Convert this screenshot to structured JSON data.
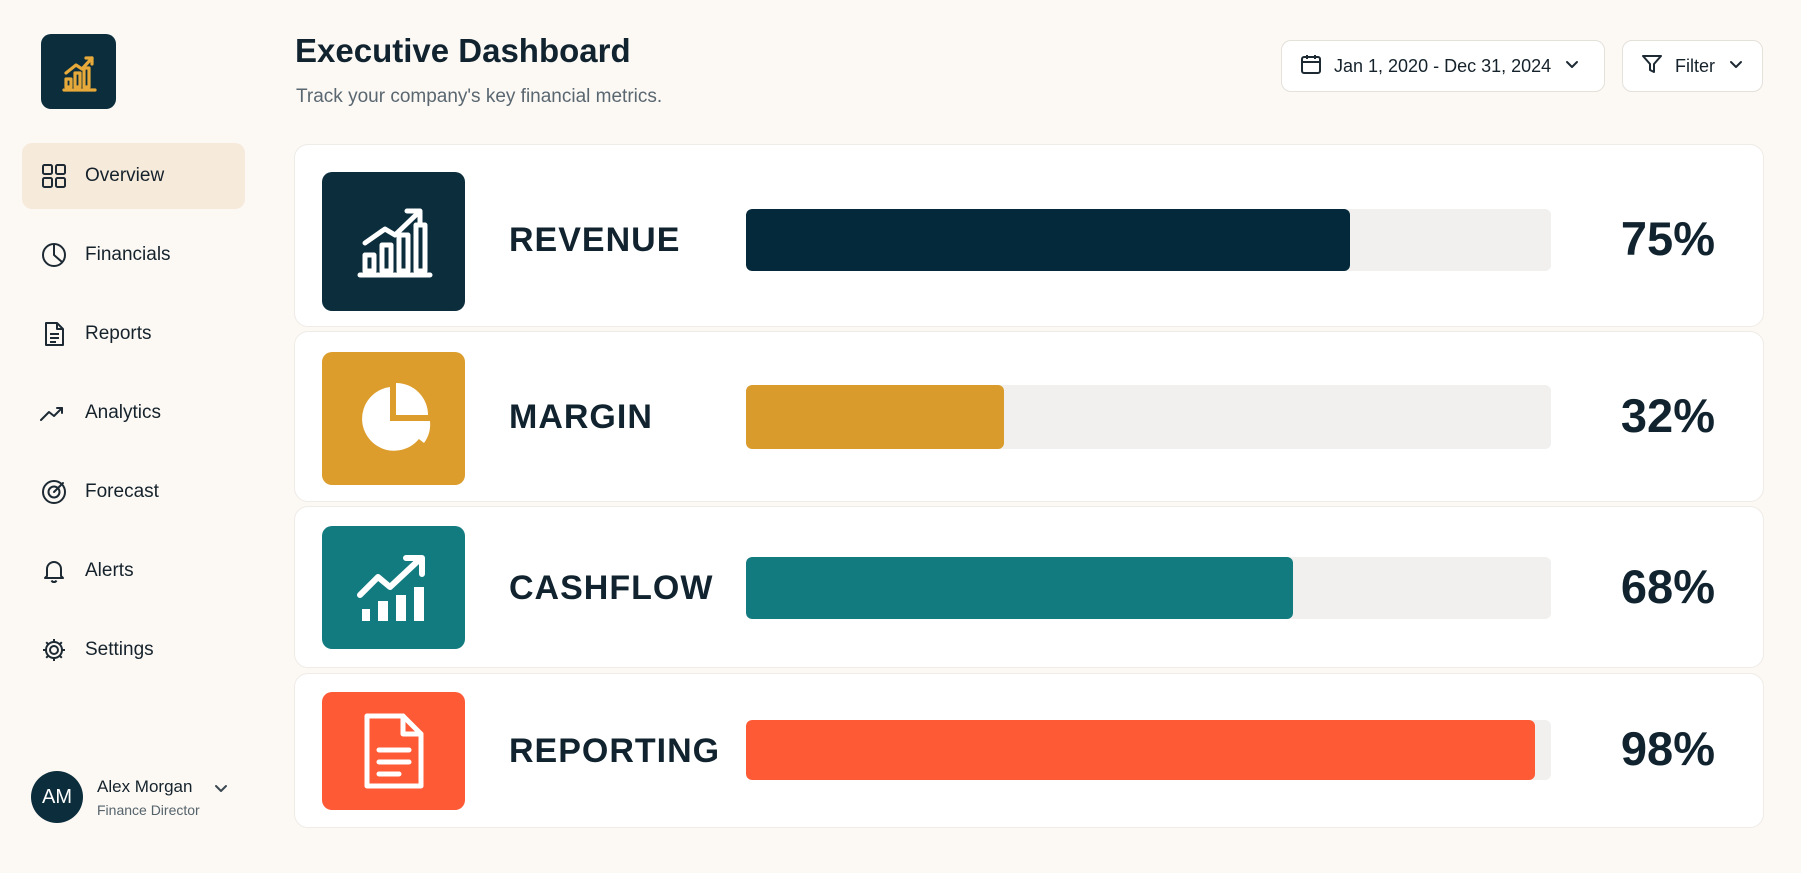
{
  "sidebar": {
    "logo_icon": "bar-chart-growth-icon",
    "items": [
      {
        "label": "Overview",
        "icon": "grid-icon",
        "active": true
      },
      {
        "label": "Financials",
        "icon": "pie-chart-icon",
        "active": false
      },
      {
        "label": "Reports",
        "icon": "document-icon",
        "active": false
      },
      {
        "label": "Analytics",
        "icon": "trend-line-icon",
        "active": false
      },
      {
        "label": "Forecast",
        "icon": "target-icon",
        "active": false
      },
      {
        "label": "Alerts",
        "icon": "bell-icon",
        "active": false
      },
      {
        "label": "Settings",
        "icon": "gear-icon",
        "active": false
      }
    ],
    "user": {
      "initials": "AM",
      "name": "Alex Morgan",
      "role": "Finance Director"
    }
  },
  "header": {
    "title": "Executive Dashboard",
    "subtitle": "Track your company's key financial metrics.",
    "date_range": "Jan 1, 2020 - Dec 31, 2024",
    "filter_label": "Filter"
  },
  "metrics": [
    {
      "name": "REVENUE",
      "value": 75,
      "label": "75%",
      "color": "#03293a",
      "icon": "growth-bar-chart-icon"
    },
    {
      "name": "MARGIN",
      "value": 32,
      "label": "32%",
      "color": "#d99b2b",
      "icon": "pie-chart-icon"
    },
    {
      "name": "CASHFLOW",
      "value": 68,
      "label": "68%",
      "color": "#127b80",
      "icon": "trend-bar-chart-icon"
    },
    {
      "name": "REPORTING",
      "value": 98,
      "label": "98%",
      "color": "#ff5a36",
      "icon": "document-icon"
    }
  ]
}
